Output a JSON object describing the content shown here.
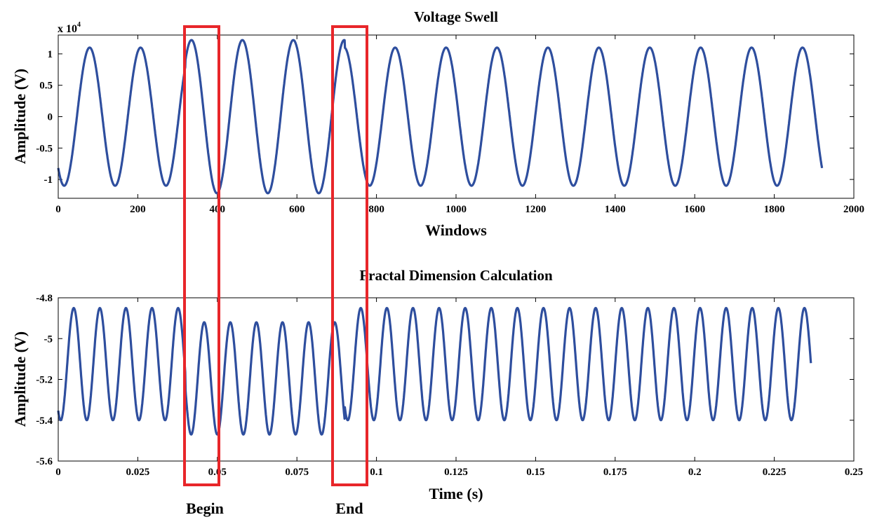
{
  "chart_data": [
    {
      "type": "line",
      "title": "Voltage Swell",
      "xlabel": "Windows",
      "ylabel": "Amplitude (V)",
      "y_multiplier": "x 10",
      "y_multiplier_exp": "4",
      "xlim": [
        0,
        2000
      ],
      "ylim": [
        -1.3,
        1.3
      ],
      "xticks": [
        0,
        200,
        400,
        600,
        800,
        1000,
        1200,
        1400,
        1600,
        1800,
        2000
      ],
      "xtick_labels": [
        "0",
        "200",
        "400",
        "600",
        "800",
        "1000",
        "1200",
        "1400",
        "1600",
        "1800",
        "2000"
      ],
      "yticks": [
        1,
        0.5,
        0,
        -0.5,
        -1
      ],
      "ytick_labels": [
        "1",
        "0.5",
        "0",
        "-0.5",
        "-1"
      ],
      "grid": false,
      "series": [
        {
          "x_start": 0,
          "x_end": 1920,
          "period": 128,
          "phase_deg": 228,
          "amplitude": 1.1,
          "swell_start": 320,
          "swell_end": 720,
          "swell_amplitude": 1.22,
          "color": "#2E4E9E"
        }
      ]
    },
    {
      "type": "line",
      "title": "Fractal Dimension Calculation",
      "xlabel": "Time (s)",
      "ylabel": "Amplitude (V)",
      "xlim": [
        0,
        0.25
      ],
      "ylim": [
        -5.6,
        -4.8
      ],
      "xticks": [
        0,
        0.025,
        0.05,
        0.075,
        0.1,
        0.125,
        0.15,
        0.175,
        0.2,
        0.225,
        0.25
      ],
      "xtick_labels": [
        "0",
        "0.025",
        "0.05",
        "0.075",
        "0.1",
        "0.125",
        "0.15",
        "0.175",
        "0.2",
        "0.225",
        "0.25"
      ],
      "yticks": [
        -4.8,
        -5,
        -5.2,
        -5.4,
        -5.6
      ],
      "ytick_labels": [
        "-4.8",
        "-5",
        "-5.2",
        "-5.4",
        "-5.6"
      ],
      "grid": false,
      "series": [
        {
          "x_start": 0,
          "x_end": 0.2365,
          "period": 0.0082,
          "phase_deg": 236,
          "normal_max": -4.85,
          "normal_min": -5.4,
          "swell_start": 0.04,
          "swell_end": 0.09,
          "swell_max": -4.92,
          "swell_min": -5.47,
          "color": "#2E4E9E"
        }
      ]
    }
  ],
  "annotations": {
    "begin_label": "Begin",
    "end_label": "End",
    "box_color": "#E8262A"
  }
}
